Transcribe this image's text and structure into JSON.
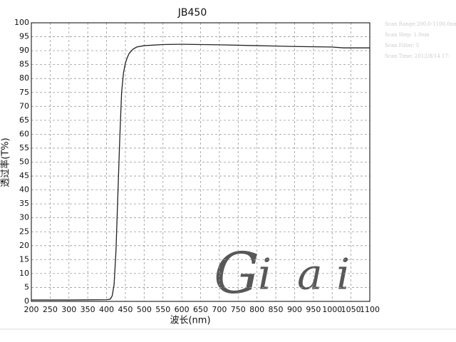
{
  "chart_data": {
    "type": "line",
    "title": "JB450",
    "x_label": "波长(nm)",
    "y_label": "透过率(T%)",
    "x": [
      200,
      300,
      400,
      410,
      415,
      420,
      425,
      430,
      435,
      440,
      445,
      450,
      455,
      460,
      470,
      480,
      500,
      550,
      600,
      700,
      800,
      900,
      1000,
      1030,
      1100
    ],
    "series": [
      {
        "name": "JB450",
        "color": "#222222",
        "values": [
          0.5,
          0.5,
          0.6,
          0.8,
          2,
          6,
          18,
          38,
          58,
          75,
          82,
          85.5,
          87.5,
          89,
          90.5,
          91.3,
          91.8,
          92.2,
          92.3,
          92.1,
          91.8,
          91.5,
          91.3,
          91,
          91
        ]
      }
    ],
    "xlim": [
      200,
      1100
    ],
    "xticks": [
      200,
      250,
      300,
      350,
      400,
      450,
      500,
      550,
      600,
      650,
      700,
      750,
      800,
      850,
      900,
      950,
      1000,
      1050,
      1100
    ],
    "ylim": [
      0,
      100
    ],
    "yticks": [
      0,
      5,
      10,
      15,
      20,
      25,
      30,
      35,
      40,
      45,
      50,
      55,
      60,
      65,
      70,
      75,
      80,
      85,
      90,
      95,
      100
    ],
    "grid": true,
    "annotations": [
      "Scan Range:200.0-1100.0nm",
      "Scan Step: 1.0nm",
      "Scan Filter: 5",
      "Scan Time: 2012/8/14 17:"
    ],
    "watermark": [
      {
        "text": "G",
        "color": "#f08080"
      },
      {
        "text": "i",
        "color": "#8080f0"
      },
      {
        "text": "a",
        "color": "#80d090"
      },
      {
        "text": "i",
        "color": "#8080f0"
      }
    ]
  }
}
